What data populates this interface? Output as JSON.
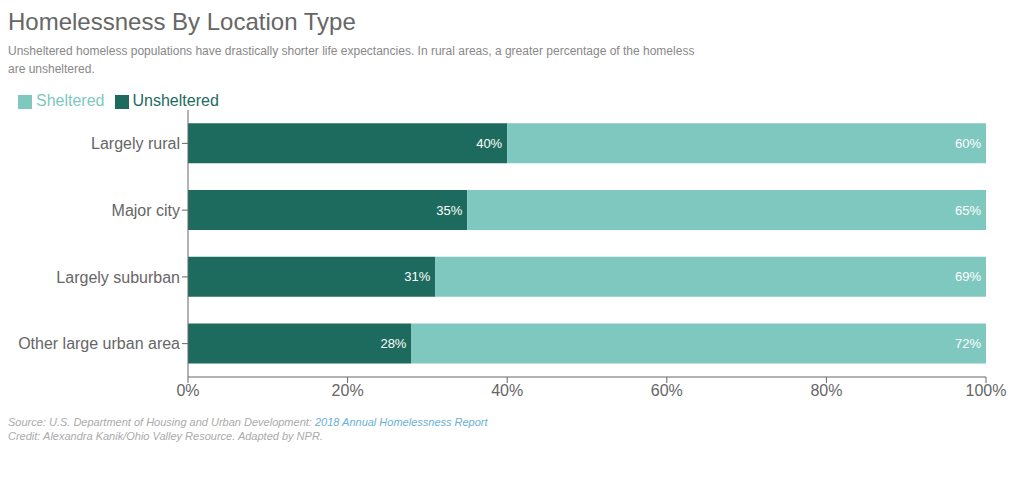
{
  "chart_data": {
    "type": "bar",
    "orientation": "horizontal",
    "stacked": true,
    "data_labels": true,
    "title": "Homelessness By Location Type",
    "subtitle": "Unsheltered homeless populations have drastically shorter life expectancies. In rural areas, a greater percentage of the homeless\nare unsheltered.",
    "categories": [
      "Largely rural",
      "Major city",
      "Largely suburban",
      "Other large urban area"
    ],
    "series": [
      {
        "name": "Unsheltered",
        "color": "#1d6b5e",
        "values": [
          40,
          35,
          31,
          28
        ],
        "value_labels": [
          "40%",
          "35%",
          "31%",
          "28%"
        ]
      },
      {
        "name": "Sheltered",
        "color": "#7ec8c0",
        "values": [
          60,
          65,
          69,
          72
        ],
        "value_labels": [
          "60%",
          "65%",
          "69%",
          "72%"
        ]
      }
    ],
    "xlim": [
      0,
      100
    ],
    "xticks": [
      {
        "value": 0,
        "label": "0%"
      },
      {
        "value": 20,
        "label": "20%"
      },
      {
        "value": 40,
        "label": "40%"
      },
      {
        "value": 60,
        "label": "60%"
      },
      {
        "value": 80,
        "label": "80%"
      },
      {
        "value": 100,
        "label": "100%"
      }
    ],
    "grid": false,
    "legend": "upper left",
    "annotations": [
      "Source: U.S. Department of Housing and Urban Development: ",
      "2018 Annual Homelessness Report",
      "Credit: Alexandra Kanik/Ohio Valley Resource. Adapted by NPR."
    ]
  }
}
